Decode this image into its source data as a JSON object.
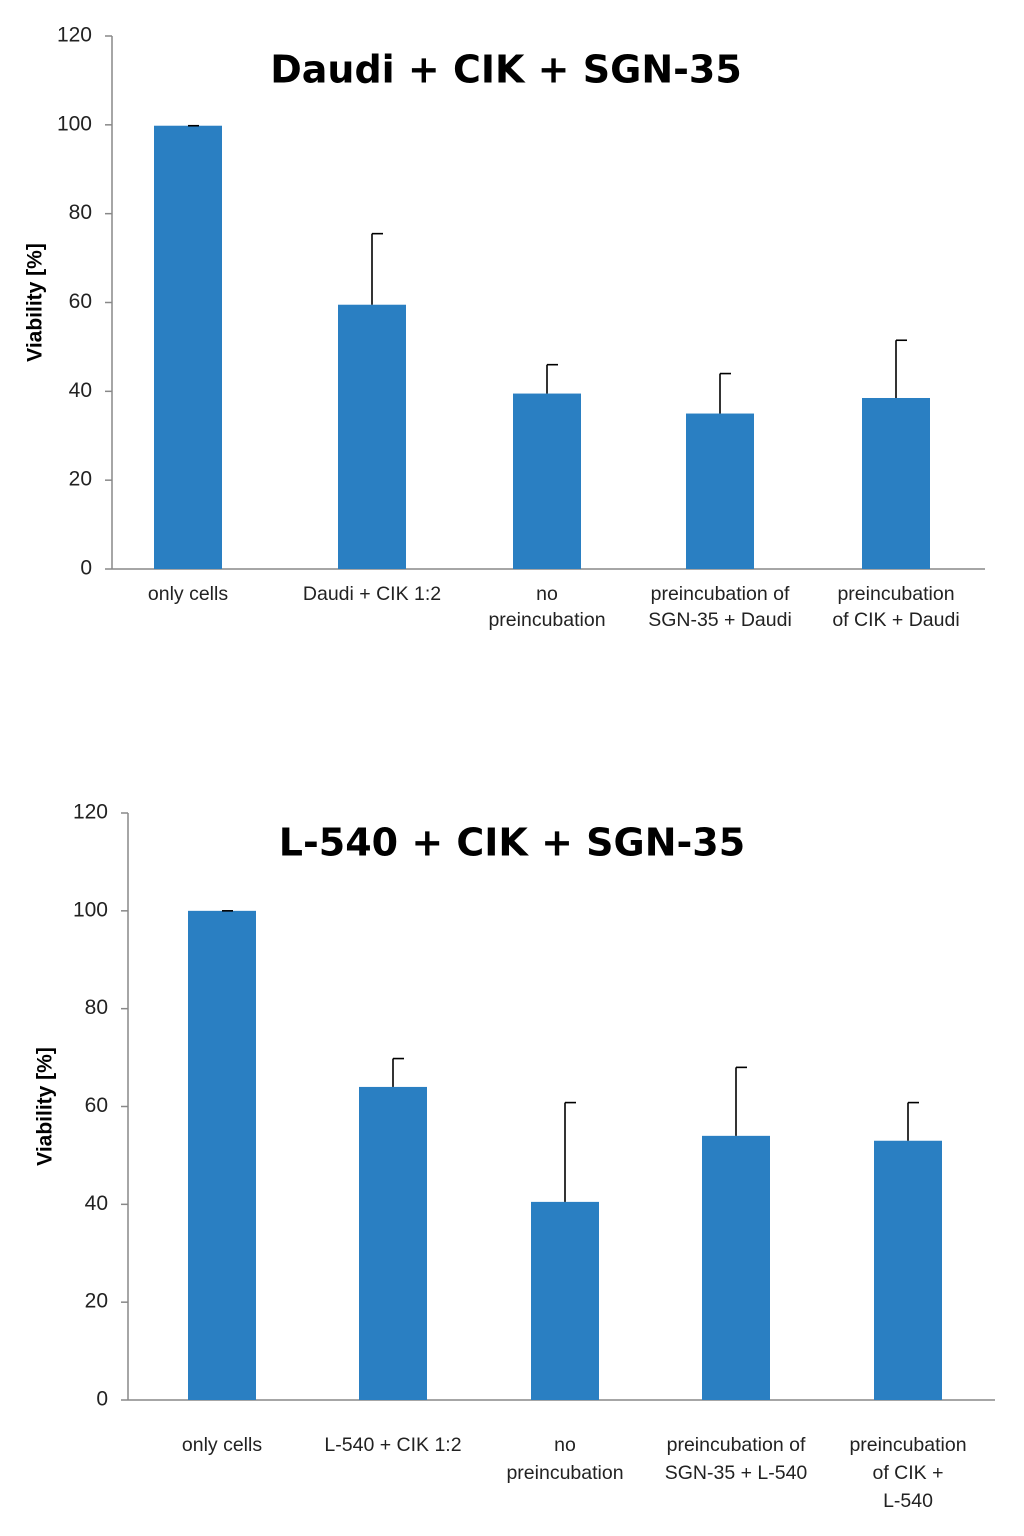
{
  "chart_data": [
    {
      "type": "bar",
      "title": "Daudi + CIK + SGN-35",
      "ylabel": "Viability [%]",
      "xlabel": "",
      "ylim": [
        0,
        120
      ],
      "yticks": [
        0,
        20,
        40,
        60,
        80,
        100,
        120
      ],
      "bar_color": "#2a7fc2",
      "categories": [
        [
          "only cells"
        ],
        [
          "Daudi + CIK 1:2"
        ],
        [
          "no",
          "preincubation"
        ],
        [
          "preincubation of",
          "SGN-35 + Daudi"
        ],
        [
          "preincubation",
          "of CIK + Daudi"
        ]
      ],
      "values": [
        99.8,
        59.5,
        39.5,
        35,
        38.5
      ],
      "errors": [
        0,
        16,
        6.5,
        9,
        13
      ]
    },
    {
      "type": "bar",
      "title": "L-540 + CIK + SGN-35",
      "ylabel": "Viability [%]",
      "xlabel": "",
      "ylim": [
        0,
        120
      ],
      "yticks": [
        0,
        20,
        40,
        60,
        80,
        100,
        120
      ],
      "bar_color": "#2a7fc2",
      "categories": [
        [
          "only cells"
        ],
        [
          "L-540 + CIK 1:2"
        ],
        [
          "no",
          "preincubation"
        ],
        [
          "preincubation of",
          "SGN-35 + L-540"
        ],
        [
          "preincubation",
          "of CIK +",
          "L-540"
        ]
      ],
      "values": [
        100,
        64,
        40.5,
        54,
        53
      ],
      "errors": [
        0,
        5.8,
        20.3,
        14,
        7.8
      ]
    }
  ]
}
